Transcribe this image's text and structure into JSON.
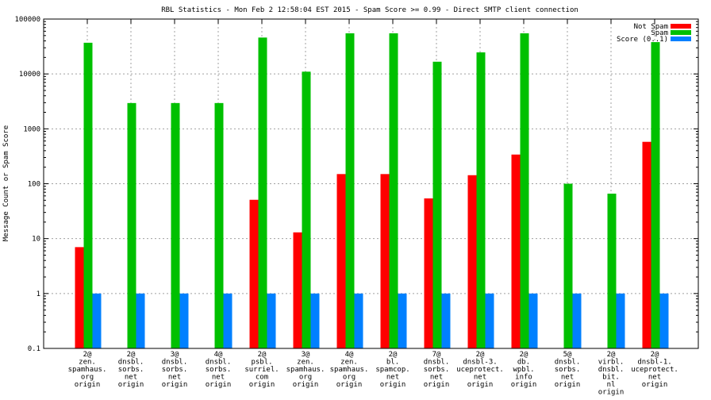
{
  "chart_data": {
    "type": "bar",
    "title": "RBL Statistics - Mon Feb  2 12:58:04 EST 2015 - Spam Score >= 0.99 - Direct SMTP client connection",
    "xlabel": "",
    "ylabel": "Message Count or Spam Score",
    "yscale": "log",
    "ylim": [
      0.1,
      100000
    ],
    "yticks": [
      "0.1",
      "1",
      "10",
      "100",
      "1000",
      "10000",
      "100000"
    ],
    "grid": true,
    "legend_position": "top-right",
    "categories": [
      [
        "2@",
        "zen.",
        "spamhaus.",
        "org",
        "origin"
      ],
      [
        "2@",
        "dnsbl.",
        "sorbs.",
        "net",
        "origin"
      ],
      [
        "3@",
        "dnsbl.",
        "sorbs.",
        "net",
        "origin"
      ],
      [
        "4@",
        "dnsbl.",
        "sorbs.",
        "net",
        "origin"
      ],
      [
        "2@",
        "psbl.",
        "surriel.",
        "com",
        "origin"
      ],
      [
        "3@",
        "zen.",
        "spamhaus.",
        "org",
        "origin"
      ],
      [
        "4@",
        "zen.",
        "spamhaus.",
        "org",
        "origin"
      ],
      [
        "2@",
        "bl.",
        "spamcop.",
        "net",
        "origin"
      ],
      [
        "7@",
        "dnsbl.",
        "sorbs.",
        "net",
        "origin"
      ],
      [
        "2@",
        "dnsbl-3.",
        "uceprotect.",
        "net",
        "origin"
      ],
      [
        "2@",
        "db.",
        "wpbl.",
        "info",
        "origin"
      ],
      [
        "5@",
        "dnsbl.",
        "sorbs.",
        "net",
        "origin"
      ],
      [
        "2@",
        "virbl.",
        "dnsbl.",
        "bit.",
        "nl",
        "origin"
      ],
      [
        "2@",
        "dnsbl-1.",
        "uceprotect.",
        "net",
        "origin"
      ]
    ],
    "series": [
      {
        "name": "Not Spam",
        "color": "#ff0000",
        "values": [
          7,
          0,
          0,
          0,
          51,
          13,
          150,
          150,
          54,
          143,
          340,
          0,
          0,
          580
        ]
      },
      {
        "name": "Spam",
        "color": "#00c000",
        "values": [
          37000,
          2950,
          2950,
          2950,
          46000,
          11000,
          55000,
          55000,
          16700,
          24700,
          55000,
          100,
          66,
          38000
        ]
      },
      {
        "name": "Score (0..1)",
        "color": "#0080ff",
        "values": [
          1,
          1,
          1,
          1,
          1,
          1,
          1,
          1,
          1,
          1,
          1,
          1,
          1,
          1
        ]
      }
    ]
  }
}
